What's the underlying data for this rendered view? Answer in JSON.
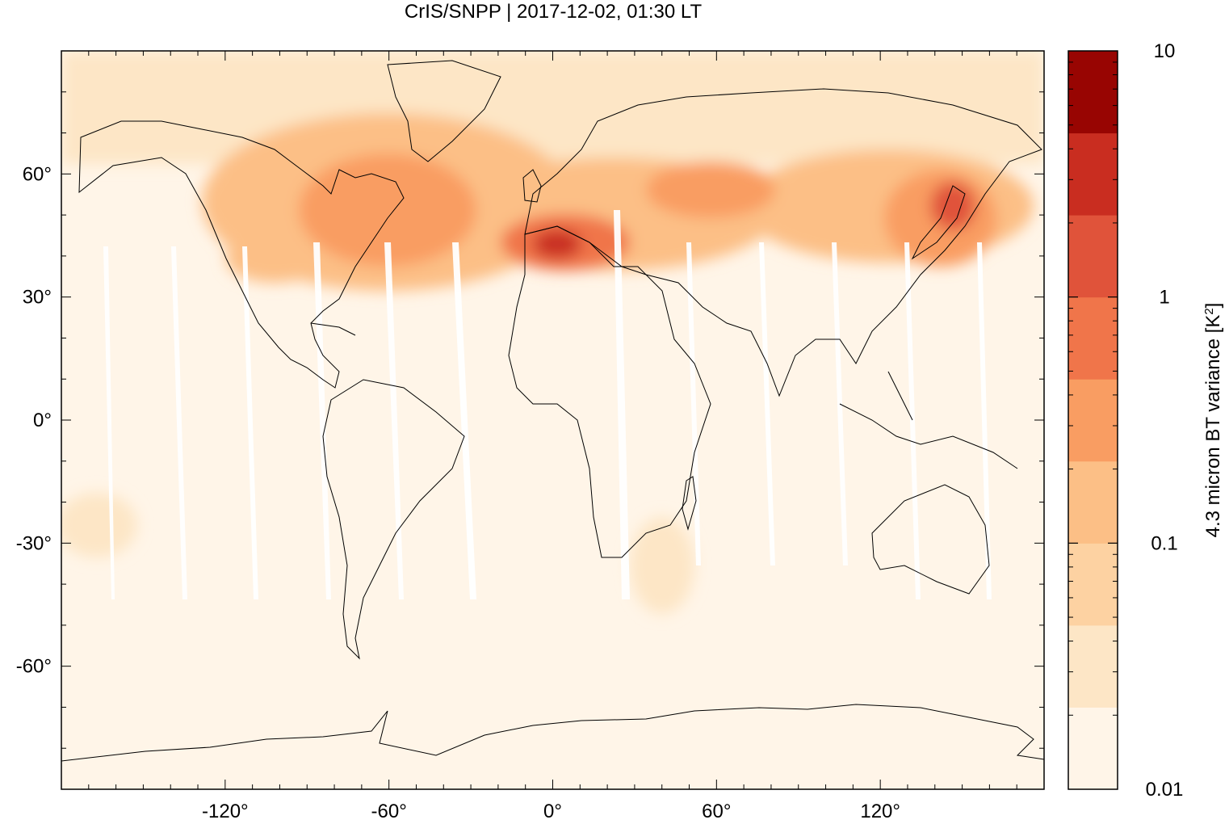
{
  "title": "CrIS/SNPP | 2017-12-02, 01:30 LT",
  "map": {
    "projection": "plate-carree",
    "lon_range": [
      -180,
      180
    ],
    "lat_range": [
      -90,
      90
    ],
    "lon_ticks": [
      "-120°",
      "-60°",
      "0°",
      "60°",
      "120°"
    ],
    "lat_ticks": [
      "60°",
      "30°",
      "0°",
      "-30°",
      "-60°"
    ],
    "lon_tick_values": [
      -120,
      -60,
      0,
      60,
      120
    ],
    "lat_tick_values": [
      60,
      30,
      0,
      -30,
      -60
    ],
    "background_color": "#fff5e8",
    "coastline_color": "#000000",
    "swath_gap_color": "#ffffff"
  },
  "colorbar": {
    "label": "4.3 micron BT variance [K",
    "label_sup": "2",
    "label_end": "]",
    "scale": "log",
    "range": [
      0.01,
      10
    ],
    "tick_labels": [
      "10",
      "1",
      "0.1",
      "0.01"
    ],
    "tick_values": [
      10,
      1,
      0.1,
      0.01
    ],
    "colors": [
      "#fff5e8",
      "#fde6c6",
      "#fdd2a2",
      "#fcbf86",
      "#f99d62",
      "#f0754a",
      "#e0533a",
      "#c92d20",
      "#980502"
    ]
  }
}
